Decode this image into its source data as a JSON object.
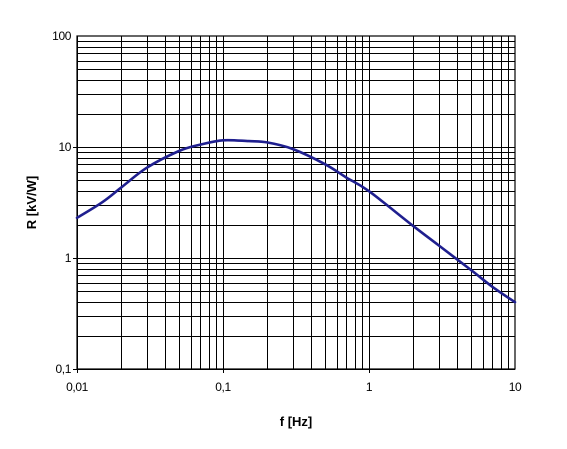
{
  "chart_data": {
    "type": "line",
    "title": "",
    "xlabel": "f [Hz]",
    "ylabel": "R [kV/W]",
    "xscale": "log",
    "yscale": "log",
    "xlim": [
      0.01,
      10
    ],
    "ylim": [
      0.1,
      100
    ],
    "grid": true,
    "legend": "none",
    "x_tick_labels": [
      "0,01",
      "0,1",
      "1",
      "10"
    ],
    "y_tick_labels": [
      "0,1",
      "1",
      "10",
      "100"
    ],
    "series": [
      {
        "name": "",
        "color": "#1f1f8f",
        "x": [
          0.01,
          0.015,
          0.02,
          0.03,
          0.05,
          0.07,
          0.1,
          0.15,
          0.2,
          0.3,
          0.5,
          0.7,
          1,
          2,
          3,
          5,
          7,
          10
        ],
        "y": [
          2.3,
          3.2,
          4.3,
          6.5,
          9.2,
          10.5,
          11.5,
          11.3,
          11.0,
          9.6,
          7.0,
          5.3,
          4.0,
          1.95,
          1.3,
          0.78,
          0.55,
          0.4
        ]
      }
    ]
  }
}
